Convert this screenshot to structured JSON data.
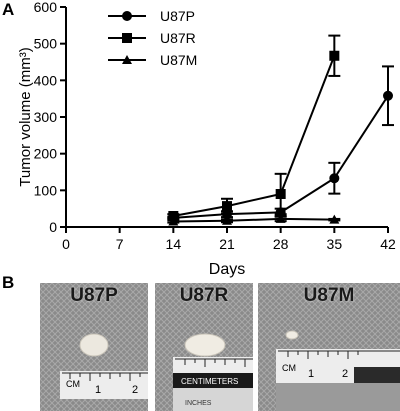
{
  "panels": {
    "a": "A",
    "b": "B"
  },
  "chart_data": {
    "type": "line",
    "x": [
      14,
      21,
      28,
      35,
      42
    ],
    "xticks": [
      0,
      7,
      14,
      21,
      28,
      35,
      42
    ],
    "xlabel": "Days",
    "ylabel": "Tumor volume (mm³)",
    "yticks": [
      0,
      100,
      200,
      300,
      400,
      500,
      600
    ],
    "xlim": [
      0,
      42
    ],
    "ylim": [
      0,
      600
    ],
    "grid": false,
    "legend_position": "top-center",
    "series": [
      {
        "name": "U87P",
        "marker": "circle",
        "values": [
          25,
          35,
          40,
          133,
          358
        ],
        "errors": [
          3,
          8,
          10,
          42,
          80
        ]
      },
      {
        "name": "U87R",
        "marker": "square",
        "values": [
          30,
          57,
          90,
          467,
          null
        ],
        "errors": [
          5,
          20,
          55,
          55,
          null
        ]
      },
      {
        "name": "U87M",
        "marker": "triangle",
        "values": [
          15,
          17,
          22,
          20,
          null
        ],
        "errors": [
          3,
          4,
          6,
          2,
          null
        ]
      }
    ]
  },
  "photos": [
    {
      "title": "U87P"
    },
    {
      "title": "U87R",
      "ruler_text": "CENTIMETERS",
      "ruler_sub": "INCHES"
    },
    {
      "title": "U87M"
    }
  ],
  "ruler": {
    "unit": "CM",
    "marks": [
      "1",
      "2"
    ]
  }
}
